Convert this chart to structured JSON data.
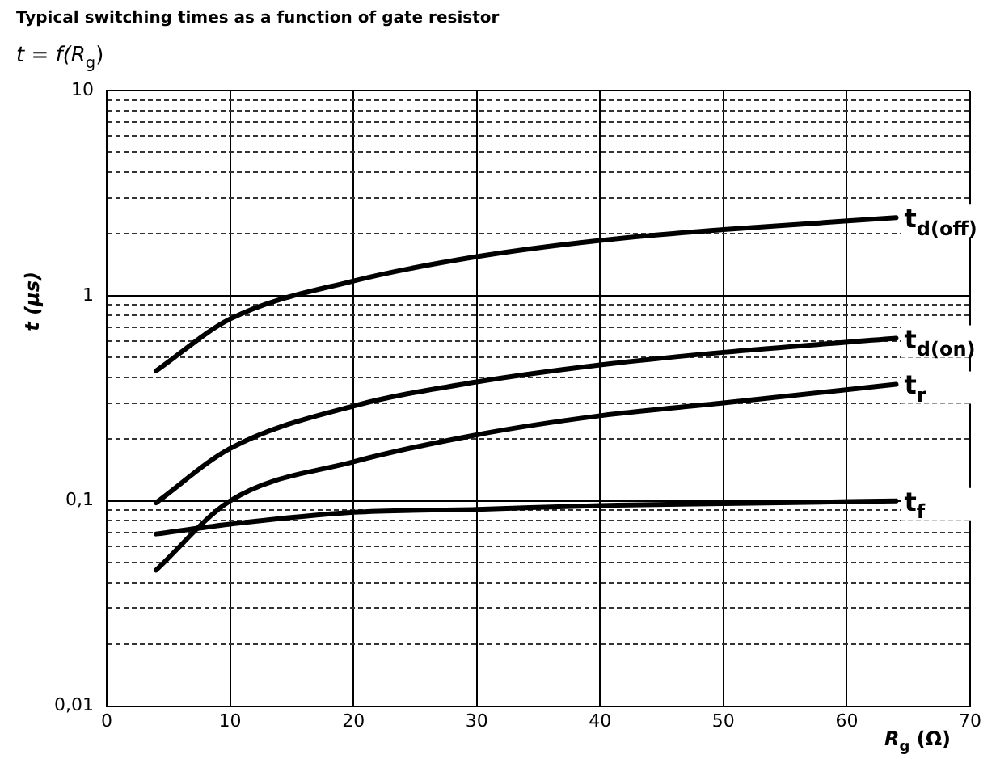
{
  "chart_data": {
    "type": "line",
    "title": "Typical switching times as a function of gate resistor",
    "subtitle": "t = f(R$_{g}$)",
    "xlabel": "R$_{g}$ (Ω)",
    "ylabel": "t (µs)",
    "log": "y",
    "grid": true,
    "legend": false,
    "marker": "none",
    "line_style": "solid",
    "xlim": [
      0,
      70
    ],
    "xticks": [
      0,
      10,
      20,
      30,
      40,
      50,
      60,
      70
    ],
    "ylim": [
      0.01,
      10
    ],
    "yticks": [
      {
        "value": 0.01,
        "label": "0,01"
      },
      {
        "value": 0.02,
        "label": null
      },
      {
        "value": 0.03,
        "label": null
      },
      {
        "value": 0.04,
        "label": null
      },
      {
        "value": 0.05,
        "label": null
      },
      {
        "value": 0.06,
        "label": null
      },
      {
        "value": 0.07,
        "label": null
      },
      {
        "value": 0.08,
        "label": null
      },
      {
        "value": 0.09,
        "label": null
      },
      {
        "value": 0.1,
        "label": "0,1"
      },
      {
        "value": 0.2,
        "label": null
      },
      {
        "value": 0.3,
        "label": null
      },
      {
        "value": 0.4,
        "label": null
      },
      {
        "value": 0.5,
        "label": null
      },
      {
        "value": 0.6,
        "label": null
      },
      {
        "value": 0.7,
        "label": null
      },
      {
        "value": 0.8,
        "label": null
      },
      {
        "value": 0.9,
        "label": null
      },
      {
        "value": 1,
        "label": "1"
      },
      {
        "value": 2,
        "label": null
      },
      {
        "value": 3,
        "label": null
      },
      {
        "value": 4,
        "label": null
      },
      {
        "value": 5,
        "label": null
      },
      {
        "value": 6,
        "label": null
      },
      {
        "value": 7,
        "label": null
      },
      {
        "value": 8,
        "label": null
      },
      {
        "value": 9,
        "label": null
      },
      {
        "value": 10,
        "label": "10"
      }
    ],
    "x": [
      4,
      10,
      20,
      30,
      40,
      50,
      64
    ],
    "series": [
      {
        "name": "t$_{d(off)}$",
        "color": "#000000",
        "values": [
          0.43,
          0.77,
          1.18,
          1.55,
          1.86,
          2.1,
          2.4
        ]
      },
      {
        "name": "t$_{d(on)}$",
        "color": "#000000",
        "values": [
          0.098,
          0.18,
          0.29,
          0.38,
          0.46,
          0.53,
          0.62
        ]
      },
      {
        "name": "t$_{r}$",
        "color": "#000000",
        "values": [
          0.046,
          0.1,
          0.155,
          0.21,
          0.26,
          0.3,
          0.37
        ]
      },
      {
        "name": "t$_{f}$",
        "color": "#000000",
        "values": [
          0.069,
          0.077,
          0.088,
          0.091,
          0.095,
          0.097,
          0.1
        ]
      }
    ]
  }
}
